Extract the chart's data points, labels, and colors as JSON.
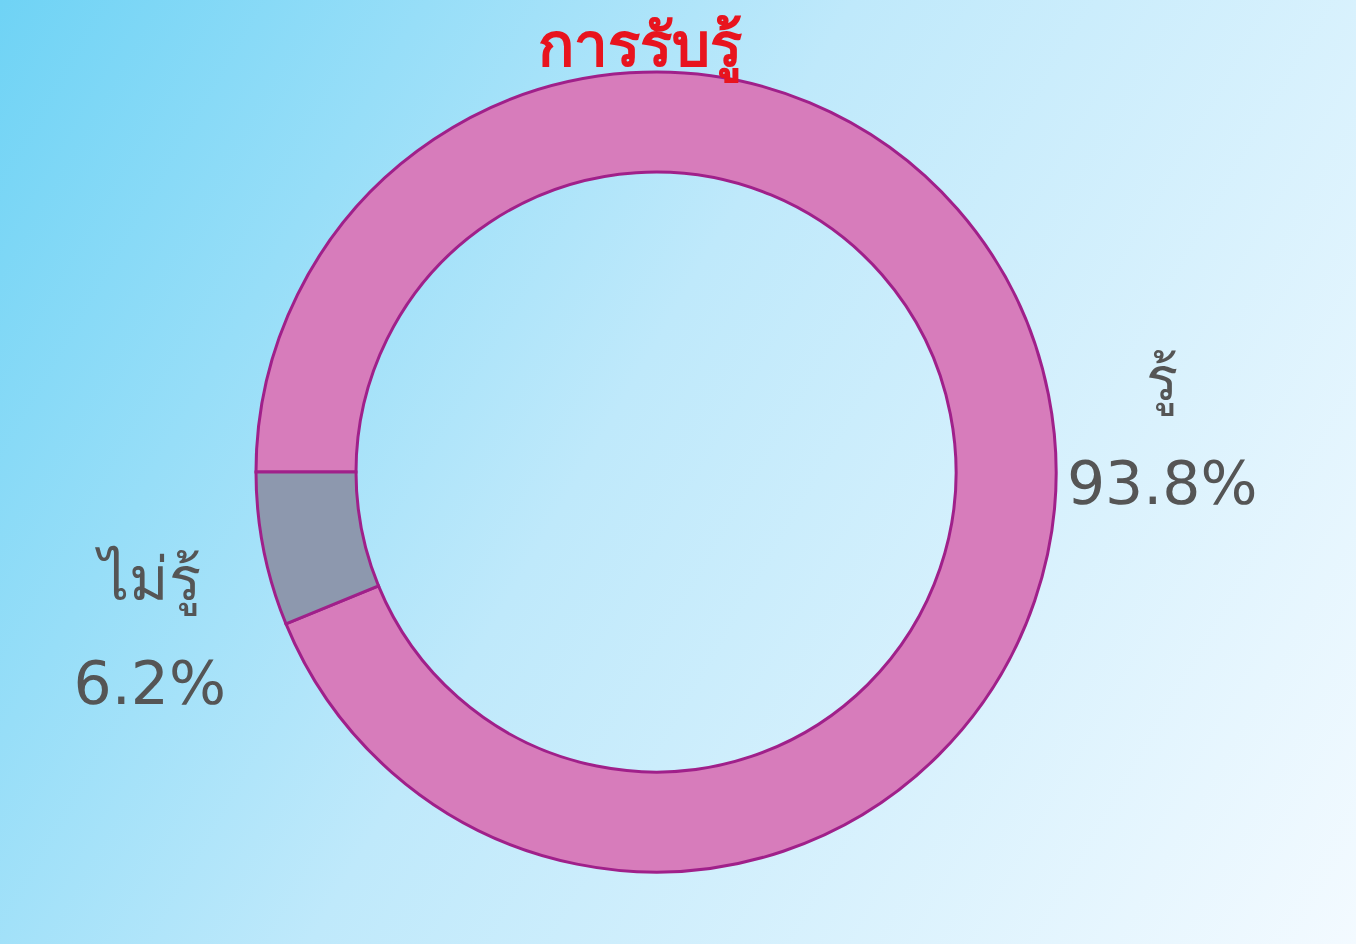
{
  "chart_data": {
    "type": "donut",
    "title": "การรับรู้",
    "categories": [
      "รู้",
      "ไม่รู้"
    ],
    "values": [
      93.8,
      6.2
    ],
    "colors": [
      "#d77cbb",
      "#8d98ae"
    ],
    "value_labels": [
      "93.8%",
      "6.2%"
    ]
  }
}
